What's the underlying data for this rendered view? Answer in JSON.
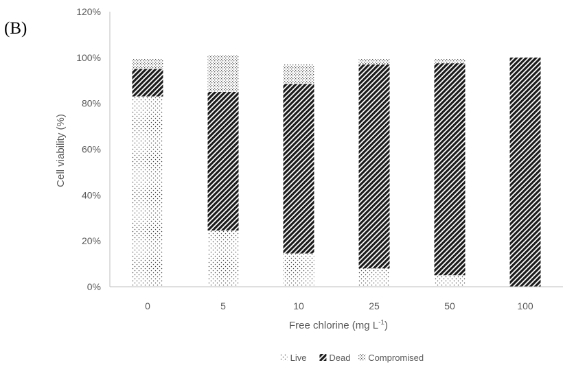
{
  "panel_label": "(B)",
  "chart_data": {
    "type": "bar",
    "stacked": true,
    "title": "",
    "xlabel_main": "Free chlorine (mg L",
    "xlabel_sup": "-1",
    "xlabel_end": ")",
    "ylabel": "Cell viability (%)",
    "ylim": [
      0,
      120
    ],
    "yticks": [
      0,
      20,
      40,
      60,
      80,
      100,
      120
    ],
    "ytick_labels": [
      "0%",
      "20%",
      "40%",
      "60%",
      "80%",
      "100%",
      "120%"
    ],
    "categories": [
      "0",
      "5",
      "10",
      "25",
      "50",
      "100"
    ],
    "series": [
      {
        "name": "Live",
        "pattern": "dots",
        "values": [
          83,
          24.5,
          14.5,
          8,
          5,
          0
        ]
      },
      {
        "name": "Dead",
        "pattern": "diagonal",
        "values": [
          12,
          60.5,
          74,
          89,
          92.5,
          100
        ]
      },
      {
        "name": "Compromised",
        "pattern": "grid-dots",
        "values": [
          4.5,
          16,
          8.5,
          2.5,
          2,
          0
        ]
      }
    ],
    "legend_position": "bottom-center",
    "grid": false
  }
}
